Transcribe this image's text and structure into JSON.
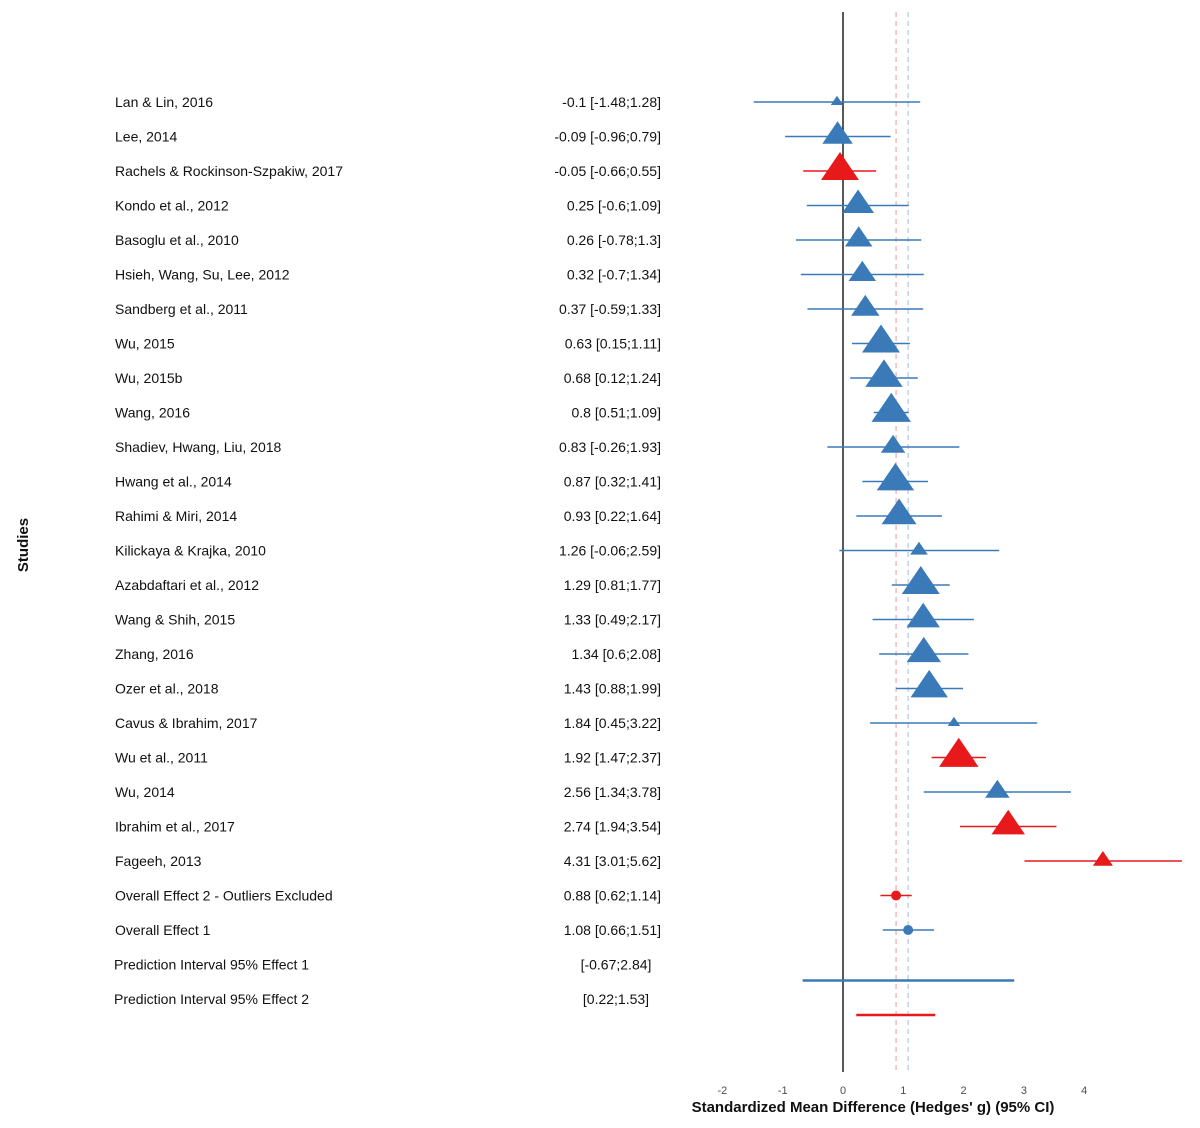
{
  "chart_data": {
    "type": "forest",
    "xlabel": "Standardized Mean Difference (Hedges' g) (95% CI)",
    "ylabel": "Studies",
    "xlim": [
      -2,
      4
    ],
    "xticks": [
      "-2",
      "-1",
      "0",
      "1",
      "2",
      "3",
      "4"
    ],
    "colors": {
      "included": "#3a7ab8",
      "outlier": "#e8191b",
      "axis": "#111111",
      "ref_red": "#f0a0a0",
      "ref_blue": "#a8c4e0"
    },
    "reference_lines": [
      {
        "name": "Overall Effect 2",
        "value": 0.88,
        "color": "outlier"
      },
      {
        "name": "Overall Effect 1",
        "value": 1.08,
        "color": "included"
      }
    ],
    "studies": [
      {
        "label": "Lan & Lin, 2016",
        "ci_text": "-0.1 [-1.48;1.28]",
        "est": -0.1,
        "lo": -1.48,
        "hi": 1.28,
        "group": "included",
        "weight": 0.15
      },
      {
        "label": "Lee, 2014",
        "ci_text": "-0.09 [-0.96;0.79]",
        "est": -0.09,
        "lo": -0.96,
        "hi": 0.79,
        "group": "included",
        "weight": 0.75
      },
      {
        "label": "Rachels & Rockinson-Szpakiw, 2017",
        "ci_text": "-0.05 [-0.66;0.55]",
        "est": -0.05,
        "lo": -0.66,
        "hi": 0.55,
        "group": "outlier",
        "weight": 1.0
      },
      {
        "label": "Kondo et al., 2012",
        "ci_text": "0.25 [-0.6;1.09]",
        "est": 0.25,
        "lo": -0.6,
        "hi": 1.09,
        "group": "included",
        "weight": 0.8
      },
      {
        "label": "Basoglu et al., 2010",
        "ci_text": "0.26 [-0.78;1.3]",
        "est": 0.26,
        "lo": -0.78,
        "hi": 1.3,
        "group": "included",
        "weight": 0.65
      },
      {
        "label": "Hsieh, Wang, Su, Lee, 2012",
        "ci_text": "0.32 [-0.7;1.34]",
        "est": 0.32,
        "lo": -0.7,
        "hi": 1.34,
        "group": "included",
        "weight": 0.65
      },
      {
        "label": "Sandberg et al., 2011",
        "ci_text": "0.37 [-0.59;1.33]",
        "est": 0.37,
        "lo": -0.59,
        "hi": 1.33,
        "group": "included",
        "weight": 0.68
      },
      {
        "label": "Wu, 2015",
        "ci_text": "0.63 [0.15;1.11]",
        "est": 0.63,
        "lo": 0.15,
        "hi": 1.11,
        "group": "included",
        "weight": 1.0
      },
      {
        "label": "Wu, 2015b",
        "ci_text": "0.68 [0.12;1.24]",
        "est": 0.68,
        "lo": 0.12,
        "hi": 1.24,
        "group": "included",
        "weight": 0.98
      },
      {
        "label": "Wang, 2016",
        "ci_text": "0.8 [0.51;1.09]",
        "est": 0.8,
        "lo": 0.51,
        "hi": 1.09,
        "group": "included",
        "weight": 1.05
      },
      {
        "label": "Shadiev, Hwang, Liu, 2018",
        "ci_text": "0.83 [-0.26;1.93]",
        "est": 0.83,
        "lo": -0.26,
        "hi": 1.93,
        "group": "included",
        "weight": 0.55
      },
      {
        "label": "Hwang et al., 2014",
        "ci_text": "0.87 [0.32;1.41]",
        "est": 0.87,
        "lo": 0.32,
        "hi": 1.41,
        "group": "included",
        "weight": 0.98
      },
      {
        "label": "Rahimi & Miri, 2014",
        "ci_text": "0.93 [0.22;1.64]",
        "est": 0.93,
        "lo": 0.22,
        "hi": 1.64,
        "group": "included",
        "weight": 0.9
      },
      {
        "label": "Kilickaya & Krajka, 2010",
        "ci_text": "1.26 [-0.06;2.59]",
        "est": 1.26,
        "lo": -0.06,
        "hi": 2.59,
        "group": "included",
        "weight": 0.32
      },
      {
        "label": "Azabdaftari et al., 2012",
        "ci_text": "1.29 [0.81;1.77]",
        "est": 1.29,
        "lo": 0.81,
        "hi": 1.77,
        "group": "included",
        "weight": 1.0
      },
      {
        "label": "Wang & Shih, 2015",
        "ci_text": "1.33 [0.49;2.17]",
        "est": 1.33,
        "lo": 0.49,
        "hi": 2.17,
        "group": "included",
        "weight": 0.85
      },
      {
        "label": "Zhang, 2016",
        "ci_text": "1.34 [0.6;2.08]",
        "est": 1.34,
        "lo": 0.6,
        "hi": 2.08,
        "group": "included",
        "weight": 0.88
      },
      {
        "label": "Ozer et al., 2018",
        "ci_text": "1.43 [0.88;1.99]",
        "est": 1.43,
        "lo": 0.88,
        "hi": 1.99,
        "group": "included",
        "weight": 0.98
      },
      {
        "label": "Cavus & Ibrahim, 2017",
        "ci_text": "1.84 [0.45;3.22]",
        "est": 1.84,
        "lo": 0.45,
        "hi": 3.22,
        "group": "included",
        "weight": 0.15
      },
      {
        "label": "Wu et al., 2011",
        "ci_text": "1.92 [1.47;2.37]",
        "est": 1.92,
        "lo": 1.47,
        "hi": 2.37,
        "group": "outlier",
        "weight": 1.05
      },
      {
        "label": "Wu, 2014",
        "ci_text": "2.56 [1.34;3.78]",
        "est": 2.56,
        "lo": 1.34,
        "hi": 3.78,
        "group": "included",
        "weight": 0.55
      },
      {
        "label": "Ibrahim et al., 2017",
        "ci_text": "2.74 [1.94;3.54]",
        "est": 2.74,
        "lo": 1.94,
        "hi": 3.54,
        "group": "outlier",
        "weight": 0.85
      },
      {
        "label": "Fageeh, 2013",
        "ci_text": "4.31 [3.01;5.62]",
        "est": 4.31,
        "lo": 3.01,
        "hi": 5.62,
        "group": "outlier",
        "weight": 0.4
      }
    ],
    "overall": [
      {
        "label": "Overall Effect 2 - Outliers Excluded",
        "ci_text": "0.88 [0.62;1.14]",
        "est": 0.88,
        "lo": 0.62,
        "hi": 1.14,
        "group": "outlier"
      },
      {
        "label": "Overall Effect 1",
        "ci_text": "1.08 [0.66;1.51]",
        "est": 1.08,
        "lo": 0.66,
        "hi": 1.51,
        "group": "included"
      }
    ],
    "prediction_intervals": [
      {
        "label": "Prediction Interval 95% Effect 1",
        "ci_text": "[-0.67;2.84]",
        "lo": -0.67,
        "hi": 2.84,
        "group": "included"
      },
      {
        "label": "Prediction Interval 95% Effect 2",
        "ci_text": "[0.22;1.53]",
        "lo": 0.22,
        "hi": 1.53,
        "group": "outlier"
      }
    ]
  }
}
